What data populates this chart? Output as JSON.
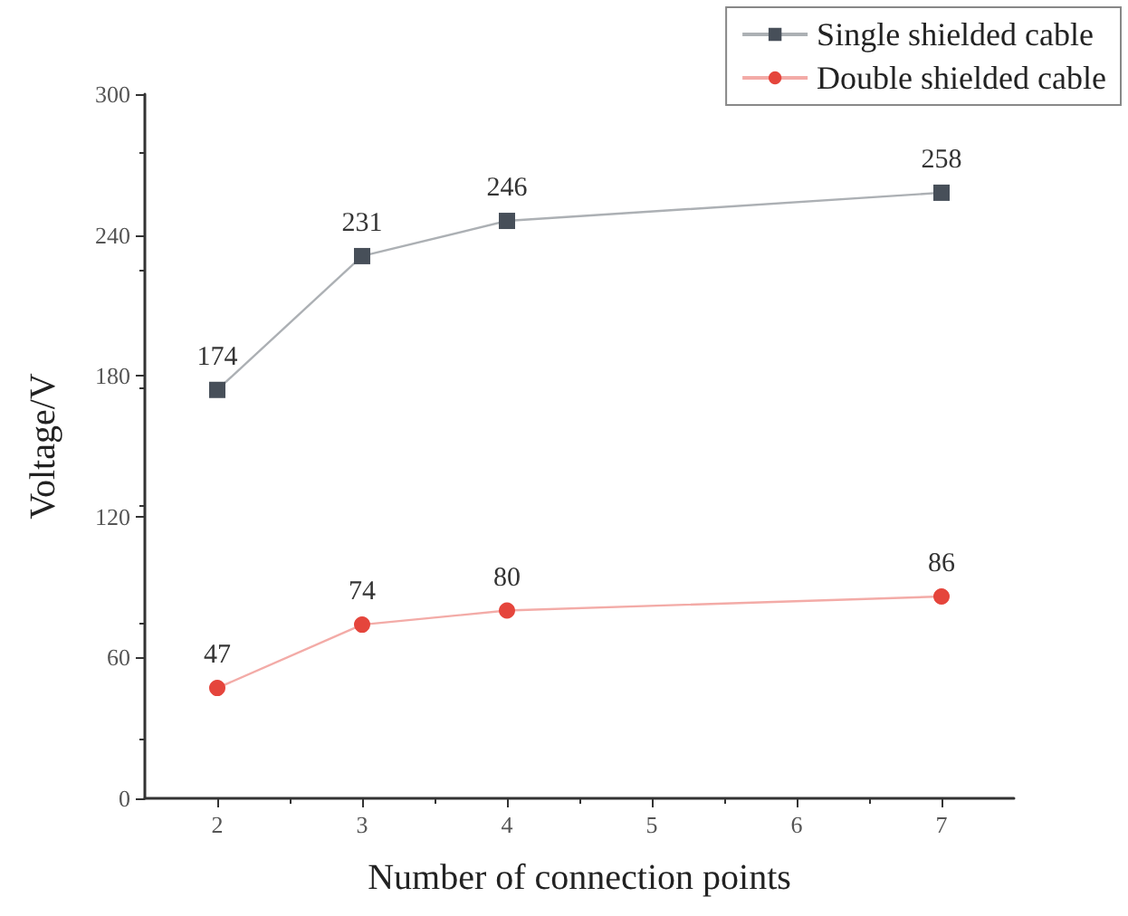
{
  "chart_data": {
    "type": "line",
    "xlabel": "Number of connection points",
    "ylabel": "Voltage/V",
    "x": [
      2,
      3,
      4,
      7
    ],
    "series": [
      {
        "name": "Single shielded cable",
        "color": "#474f59",
        "marker": "square",
        "values": [
          174,
          231,
          246,
          258
        ]
      },
      {
        "name": "Double shielded cable",
        "color": "#e5453c",
        "marker": "circle",
        "values": [
          47,
          74,
          80,
          86
        ]
      }
    ],
    "xlim": [
      1.5,
      7.5
    ],
    "xticks": [
      2,
      3,
      4,
      5,
      6,
      7
    ],
    "ylim": [
      0,
      300
    ],
    "yticks": [
      0,
      60,
      120,
      180,
      240,
      300
    ],
    "data_labels": true,
    "grid": false,
    "legend": "top right",
    "line_style": "solid"
  }
}
